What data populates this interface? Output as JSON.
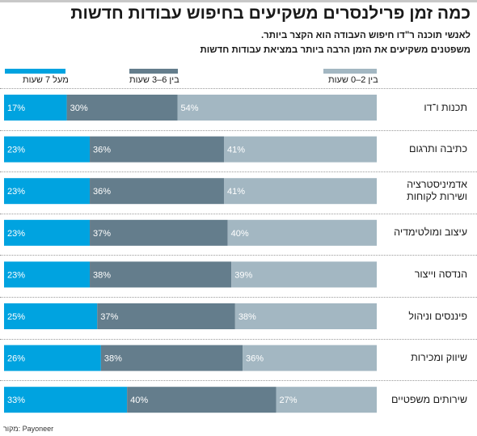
{
  "title": "כמה זמן פרילנסרים משקיעים בחיפוש עבודות חדשות",
  "subtitle_1": "לאנשי תוכנה ר\"דו חיפוש העבודה הוא הקצר ביותר.",
  "subtitle_2": "משפטנים משקיעים את הזמן הרבה ביותר במציאת עבודות חדשות",
  "source": "מקור: Payoneer",
  "colors": {
    "series_0": "#00a3e0",
    "series_1": "#647d8c",
    "series_2": "#a3b7c2",
    "top_bar": "#c8c8c8"
  },
  "chart_data": {
    "type": "bar",
    "orientation": "horizontal",
    "stacked": true,
    "percent_stacked": true,
    "legend_position": "top",
    "categories": [
      "תכנות ו־דו",
      "כתיבה ותרגום",
      "אדמיניסטרציה ושירות לקוחות",
      "עיצוב ומולטימדיה",
      "הנדסה וייצור",
      "פיננסים וניהול",
      "שיווק ומכירות",
      "שירותים משפטיים"
    ],
    "series": [
      {
        "name": "מעל 7 שעות",
        "values": [
          17,
          23,
          23,
          23,
          23,
          25,
          26,
          33
        ]
      },
      {
        "name": "בין 6–3 שעות",
        "values": [
          30,
          36,
          36,
          37,
          38,
          37,
          38,
          40
        ]
      },
      {
        "name": "בין 2–0 שעות",
        "values": [
          54,
          41,
          41,
          40,
          39,
          38,
          36,
          27
        ]
      }
    ],
    "value_suffix": "%"
  }
}
